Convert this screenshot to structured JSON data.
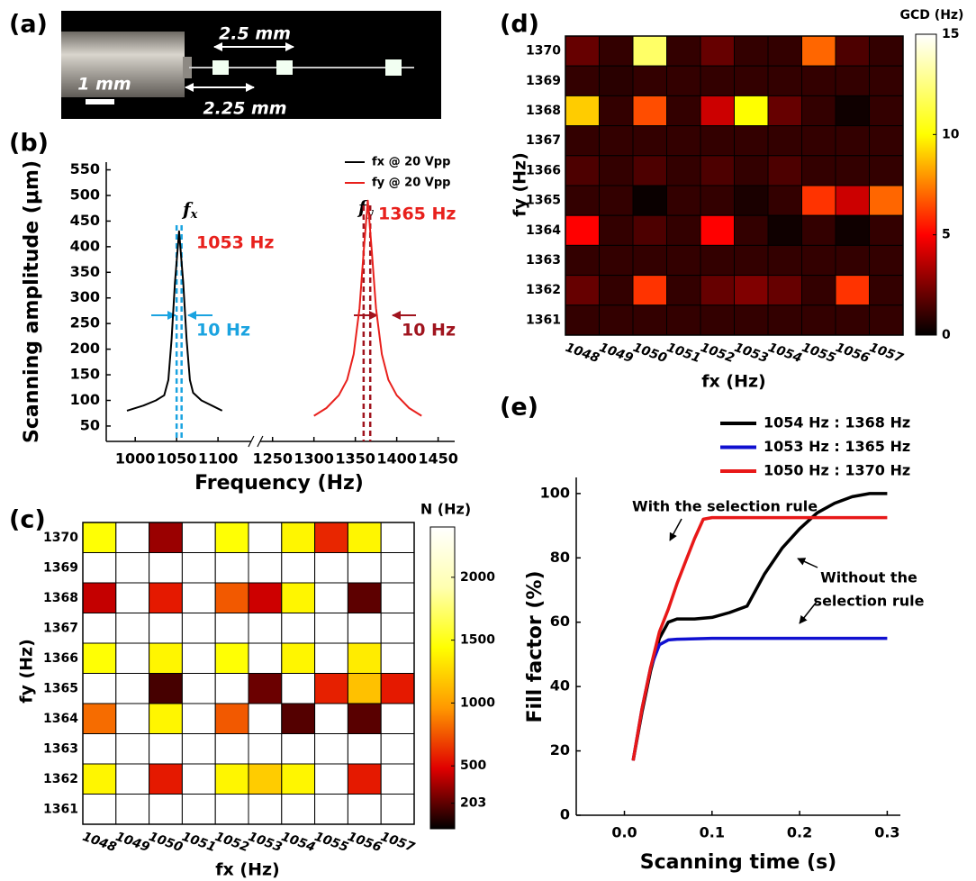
{
  "panel_labels": [
    "(a)",
    "(b)",
    "(c)",
    "(d)",
    "(e)"
  ],
  "photo": {
    "annotations": [
      "2.5 mm",
      "1 mm",
      "2.25 mm"
    ]
  },
  "chart_data": [
    {
      "type": "line",
      "xlabel": "Frequency (Hz)",
      "ylabel": "Scanning amplitude (μm)",
      "xlim": [
        965,
        1470
      ],
      "xbreak": [
        1140,
        1235
      ],
      "xticks": [
        1000,
        1050,
        1100,
        1250,
        1300,
        1350,
        1400,
        1450
      ],
      "ylim": [
        20,
        565
      ],
      "yticks": [
        50,
        100,
        150,
        200,
        250,
        300,
        350,
        400,
        450,
        500,
        550
      ],
      "legend": "upper right",
      "series": [
        {
          "name": "fx @ 20 Vpp",
          "color": "#000000",
          "x": [
            990,
            1010,
            1025,
            1035,
            1040,
            1044,
            1048,
            1053,
            1058,
            1062,
            1066,
            1070,
            1080,
            1095,
            1105
          ],
          "values": [
            80,
            90,
            100,
            110,
            140,
            220,
            330,
            430,
            330,
            220,
            140,
            115,
            100,
            88,
            80
          ]
        },
        {
          "name": "fy @ 20 Vpp",
          "color": "#e8201c",
          "x": [
            1300,
            1315,
            1330,
            1340,
            1348,
            1355,
            1360,
            1365,
            1370,
            1375,
            1382,
            1390,
            1400,
            1415,
            1430
          ],
          "values": [
            70,
            85,
            110,
            140,
            190,
            280,
            390,
            490,
            390,
            280,
            190,
            140,
            110,
            85,
            70
          ]
        }
      ],
      "markers": [
        {
          "color": "#1aa3e0",
          "x": [
            1050,
            1056
          ]
        },
        {
          "color": "#a0141e",
          "x": [
            1360,
            1368
          ]
        }
      ],
      "peak_labels": [
        {
          "text": "f",
          "sub": "x"
        },
        {
          "text": "f",
          "sub": "y"
        }
      ],
      "annotations": [
        "1053 Hz",
        "1365 Hz",
        "10 Hz",
        "10 Hz"
      ]
    },
    {
      "type": "heatmap",
      "xlabel": "fx (Hz)",
      "ylabel": "fy (Hz)",
      "zlabel": "N (Hz)",
      "categories": [
        "1048",
        "1049",
        "1050",
        "1051",
        "1052",
        "1053",
        "1054",
        "1055",
        "1056",
        "1057"
      ],
      "y_categories": [
        "1370",
        "1369",
        "1368",
        "1367",
        "1366",
        "1365",
        "1364",
        "1363",
        "1362",
        "1361"
      ],
      "values": [
        [
          1450,
          null,
          330,
          null,
          1450,
          null,
          1400,
          600,
          1400,
          null
        ],
        [
          null,
          null,
          null,
          null,
          null,
          null,
          null,
          null,
          null,
          null
        ],
        [
          420,
          null,
          560,
          null,
          760,
          440,
          1400,
          null,
          200,
          null
        ],
        [
          null,
          null,
          null,
          null,
          null,
          null,
          null,
          null,
          null,
          null
        ],
        [
          1450,
          null,
          1400,
          null,
          1450,
          null,
          1400,
          null,
          1350,
          null
        ],
        [
          null,
          null,
          150,
          null,
          null,
          230,
          null,
          580,
          1150,
          560
        ],
        [
          820,
          null,
          1400,
          null,
          760,
          null,
          180,
          null,
          190,
          null
        ],
        [
          null,
          null,
          null,
          null,
          null,
          null,
          null,
          null,
          null,
          null
        ],
        [
          1400,
          null,
          560,
          null,
          1400,
          1200,
          1400,
          null,
          560,
          null
        ],
        [
          null,
          null,
          null,
          null,
          null,
          null,
          null,
          null,
          null,
          null
        ]
      ],
      "zlim": [
        0,
        2400
      ],
      "zticks": [
        203,
        500,
        1000,
        1500,
        2000
      ],
      "colormap": [
        "#000000",
        "#e00000",
        "#ff9800",
        "#ffff00",
        "#ffffb0",
        "#ffffff"
      ]
    },
    {
      "type": "heatmap",
      "xlabel": "fx (Hz)",
      "ylabel": "fy (Hz)",
      "zlabel": "GCD (Hz)",
      "categories": [
        "1048",
        "1049",
        "1050",
        "1051",
        "1052",
        "1053",
        "1054",
        "1055",
        "1056",
        "1057"
      ],
      "y_categories": [
        "1370",
        "1369",
        "1368",
        "1367",
        "1366",
        "1365",
        "1364",
        "1363",
        "1362",
        "1361"
      ],
      "values": [
        [
          2,
          1,
          12,
          1,
          2,
          1,
          1,
          7,
          1.5,
          1
        ],
        [
          1,
          0.8,
          1,
          1,
          1,
          1,
          1,
          1,
          1,
          1
        ],
        [
          9,
          1,
          6.5,
          1,
          4,
          10,
          2,
          1,
          0.3,
          1
        ],
        [
          1,
          1,
          1,
          1,
          1,
          1,
          1,
          1,
          1,
          1
        ],
        [
          1.5,
          1,
          1.5,
          1,
          1.5,
          1,
          1.5,
          1,
          1,
          1
        ],
        [
          1,
          1,
          0.2,
          1,
          1,
          0.5,
          1,
          6,
          4,
          7
        ],
        [
          5,
          1,
          1.5,
          1,
          5,
          1,
          0.3,
          1,
          0.3,
          1
        ],
        [
          1,
          1,
          1,
          1,
          1,
          1,
          1,
          1,
          1,
          1
        ],
        [
          2,
          1,
          6,
          1,
          2,
          2.5,
          2,
          1,
          6,
          1
        ],
        [
          1,
          1,
          1,
          1,
          1,
          1,
          1,
          1,
          1,
          1
        ]
      ],
      "zlim": [
        0,
        15
      ],
      "zticks": [
        0,
        5,
        10,
        15
      ],
      "colormap": [
        "#000000",
        "#ff0000",
        "#ffff00",
        "#ffffff"
      ]
    },
    {
      "type": "line",
      "xlabel": "Scanning time (s)",
      "ylabel": "Fill factor (%)",
      "xlim": [
        -0.055,
        0.315
      ],
      "xticks": [
        {
          "value": 0,
          "label": "0.0"
        },
        0.1,
        0.2,
        0.3
      ],
      "ylim": [
        0,
        105
      ],
      "yticks": [
        0,
        20,
        40,
        60,
        80,
        100
      ],
      "legend": "top",
      "series": [
        {
          "name": "1054 Hz : 1368 Hz",
          "color": "#000000",
          "x": [
            0.01,
            0.02,
            0.03,
            0.04,
            0.05,
            0.06,
            0.08,
            0.1,
            0.12,
            0.14,
            0.16,
            0.18,
            0.2,
            0.22,
            0.24,
            0.26,
            0.28,
            0.3
          ],
          "values": [
            17,
            32,
            45,
            55,
            60,
            61,
            61,
            61.5,
            63,
            65,
            75,
            83,
            89,
            94,
            97,
            99,
            100,
            100
          ]
        },
        {
          "name": "1053 Hz : 1365 Hz",
          "color": "#1010d0",
          "x": [
            0.01,
            0.02,
            0.03,
            0.04,
            0.05,
            0.06,
            0.1,
            0.2,
            0.3
          ],
          "values": [
            17,
            33,
            46,
            53,
            54.5,
            54.7,
            55,
            55,
            55
          ]
        },
        {
          "name": "1050 Hz : 1370 Hz",
          "color": "#e81818",
          "x": [
            0.01,
            0.02,
            0.03,
            0.04,
            0.05,
            0.06,
            0.07,
            0.08,
            0.09,
            0.1,
            0.2,
            0.3
          ],
          "values": [
            17,
            33,
            46,
            57,
            64,
            72,
            79,
            86,
            92,
            92.5,
            92.5,
            92.5
          ]
        }
      ],
      "annotations": [
        "With the selection rule",
        "Without the",
        "selection rule"
      ]
    }
  ]
}
